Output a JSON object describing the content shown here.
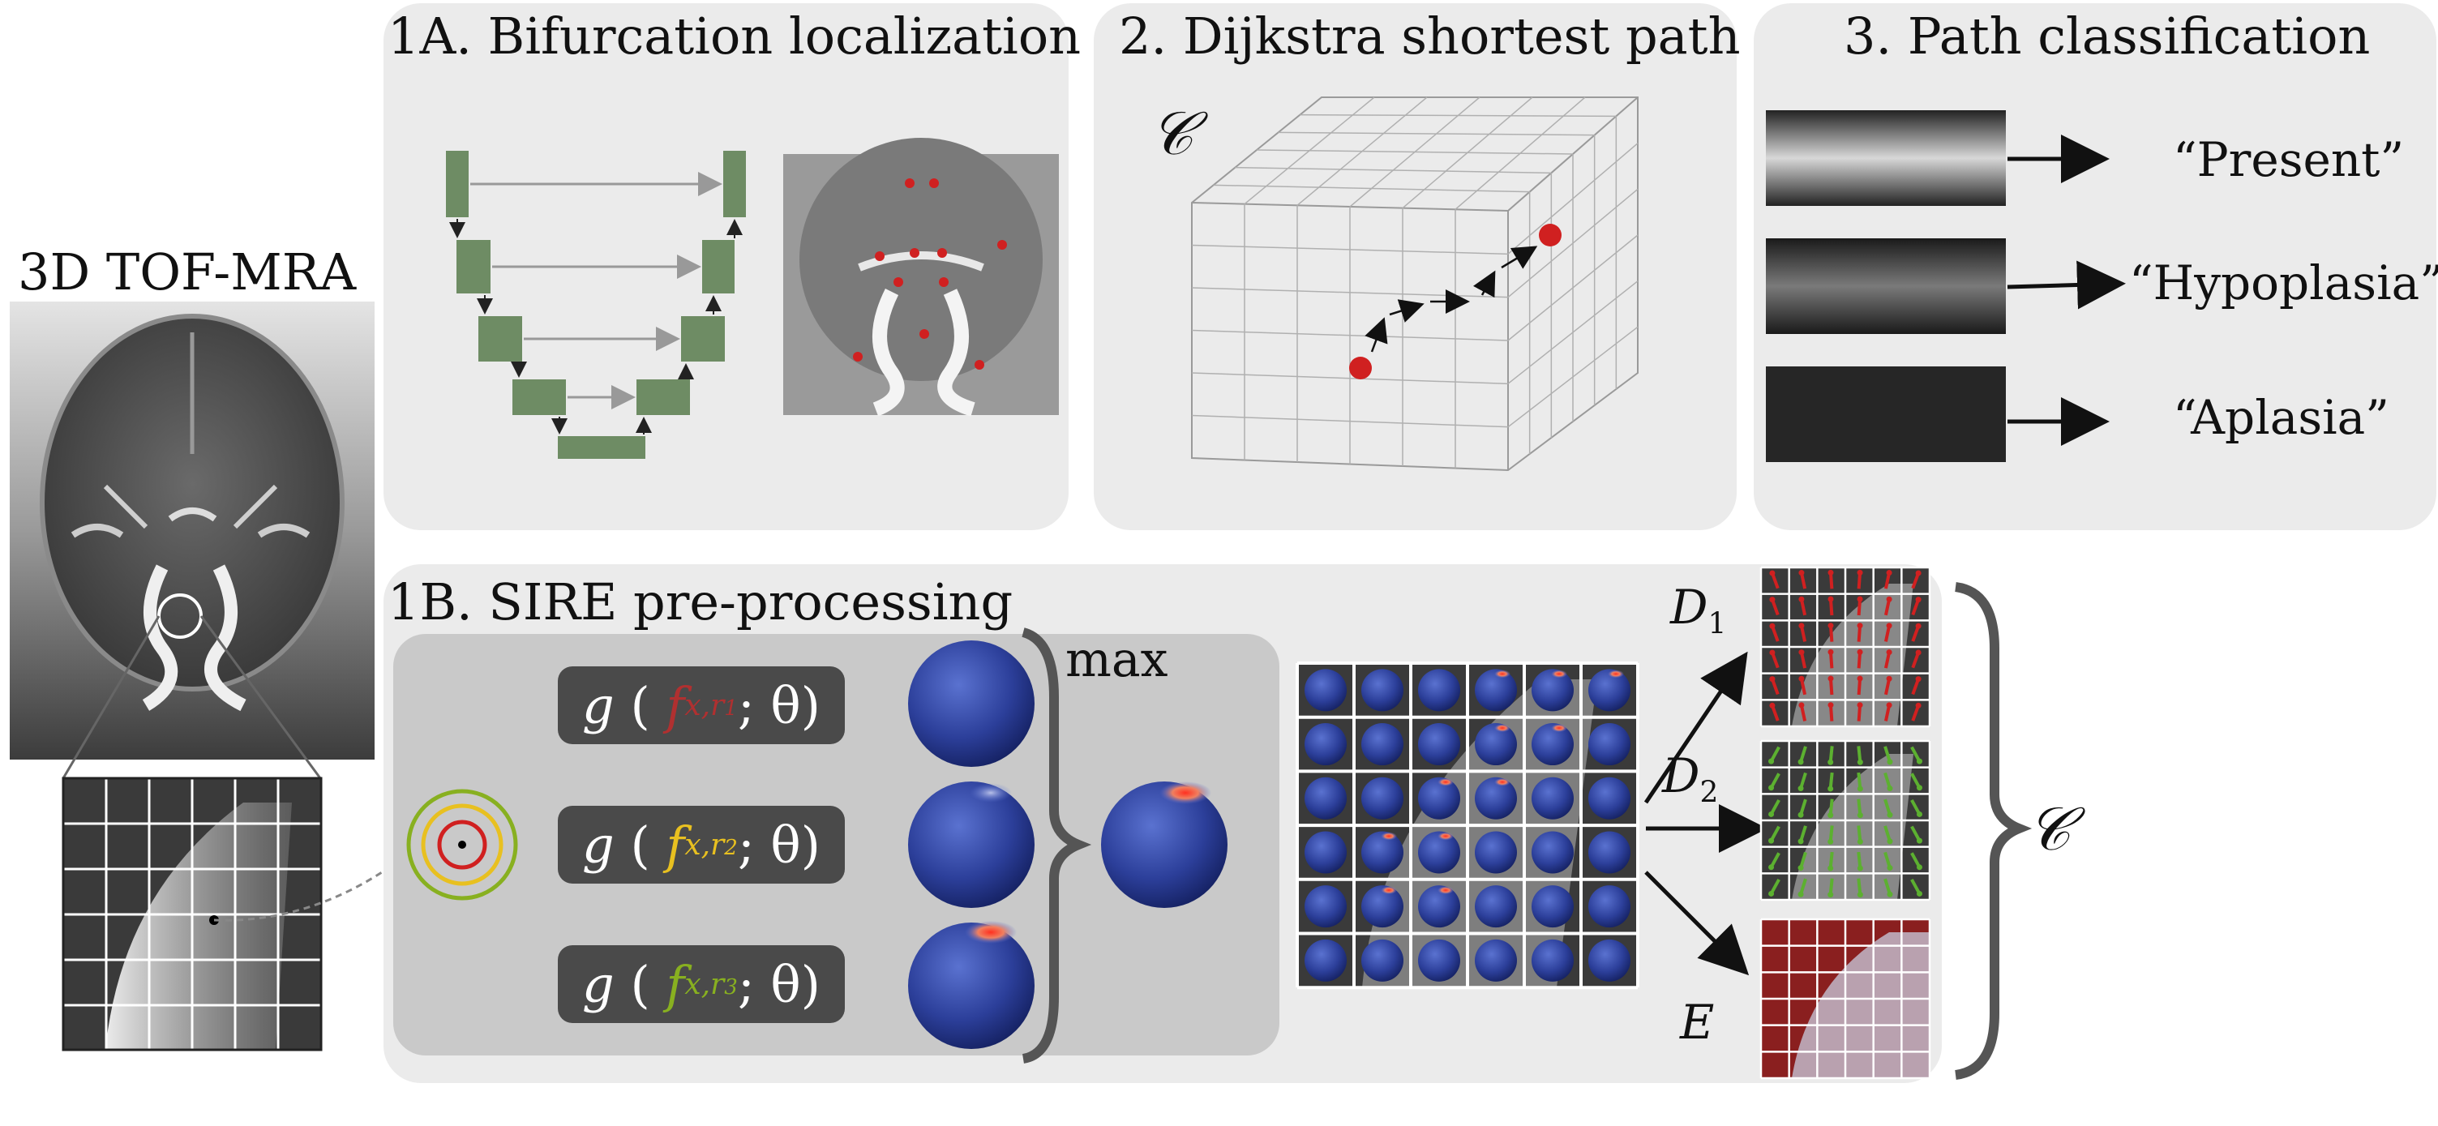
{
  "tof": {
    "title": "3D TOF-MRA"
  },
  "panel_1a": {
    "title": "1A. Bifurcation localization"
  },
  "panel_2": {
    "title": "2. Dijkstra shortest path",
    "cost_symbol": "𝒞"
  },
  "panel_3": {
    "title": "3. Path classification",
    "classes": [
      "“Present”",
      "“Hypoplasia”",
      "“Aplasia”"
    ]
  },
  "panel_1b": {
    "title": "1B. SIRE pre-processing",
    "max_label": "max",
    "g_terms": [
      {
        "g": "g",
        "f": "f",
        "sub": "x,r",
        "idx": "1",
        "theta": "; θ)",
        "color": "#b03030"
      },
      {
        "g": "g",
        "f": "f",
        "sub": "x,r",
        "idx": "2",
        "theta": "; θ)",
        "color": "#e8c020"
      },
      {
        "g": "g",
        "f": "f",
        "sub": "x,r",
        "idx": "3",
        "theta": "; θ)",
        "color": "#88b020"
      }
    ],
    "outputs": {
      "d1": "D",
      "d1_sub": "1",
      "d2": "D",
      "d2_sub": "2",
      "e": "E",
      "c": "𝒞"
    }
  },
  "colors": {
    "panel_bg": "#ebebeb",
    "inner_bg": "#c9c9c9",
    "unet_block": "#6e8c64",
    "sphere": "#2c3f9a",
    "hot": "#d23a2a",
    "red_arrow": "#d02020",
    "green_arrow": "#5cb030",
    "dark_red": "#8a1f1f"
  }
}
